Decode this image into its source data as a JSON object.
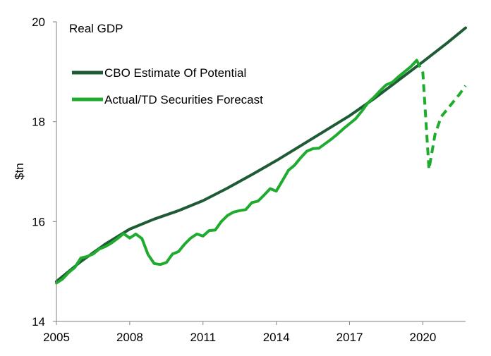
{
  "chart_data": {
    "type": "line",
    "title": "Real GDP",
    "xlabel": "",
    "ylabel": "$tn",
    "xlim": [
      2005,
      2021.75
    ],
    "ylim": [
      14,
      20
    ],
    "x_ticks": [
      2005,
      2008,
      2011,
      2014,
      2017,
      2020
    ],
    "y_ticks": [
      14,
      16,
      18,
      20
    ],
    "grid": false,
    "legend_position": "top-left",
    "series": [
      {
        "name": "CBO Estimate Of Potential",
        "color": "#1e5b35",
        "style": "solid",
        "points": [
          [
            2005,
            14.8
          ],
          [
            2006,
            15.2
          ],
          [
            2007,
            15.55
          ],
          [
            2008,
            15.85
          ],
          [
            2009,
            16.05
          ],
          [
            2010,
            16.22
          ],
          [
            2011,
            16.42
          ],
          [
            2012,
            16.67
          ],
          [
            2013,
            16.94
          ],
          [
            2014,
            17.22
          ],
          [
            2015,
            17.52
          ],
          [
            2016,
            17.82
          ],
          [
            2017,
            18.12
          ],
          [
            2018,
            18.46
          ],
          [
            2019,
            18.83
          ],
          [
            2020,
            19.2
          ],
          [
            2021,
            19.58
          ],
          [
            2021.75,
            19.88
          ]
        ]
      },
      {
        "name": "Actual/TD Securities Forecast",
        "color": "#1fac2e",
        "style": "solid",
        "points": [
          [
            2005,
            14.77
          ],
          [
            2005.25,
            14.85
          ],
          [
            2005.5,
            14.98
          ],
          [
            2005.75,
            15.08
          ],
          [
            2006,
            15.27
          ],
          [
            2006.25,
            15.3
          ],
          [
            2006.5,
            15.35
          ],
          [
            2006.75,
            15.45
          ],
          [
            2007,
            15.5
          ],
          [
            2007.25,
            15.57
          ],
          [
            2007.5,
            15.66
          ],
          [
            2007.75,
            15.76
          ],
          [
            2008,
            15.67
          ],
          [
            2008.25,
            15.75
          ],
          [
            2008.5,
            15.66
          ],
          [
            2008.75,
            15.34
          ],
          [
            2009,
            15.16
          ],
          [
            2009.25,
            15.14
          ],
          [
            2009.5,
            15.18
          ],
          [
            2009.75,
            15.35
          ],
          [
            2010,
            15.4
          ],
          [
            2010.25,
            15.55
          ],
          [
            2010.5,
            15.67
          ],
          [
            2010.75,
            15.75
          ],
          [
            2011,
            15.71
          ],
          [
            2011.25,
            15.82
          ],
          [
            2011.5,
            15.83
          ],
          [
            2011.75,
            16.0
          ],
          [
            2012,
            16.12
          ],
          [
            2012.25,
            16.19
          ],
          [
            2012.5,
            16.22
          ],
          [
            2012.75,
            16.24
          ],
          [
            2013,
            16.38
          ],
          [
            2013.25,
            16.41
          ],
          [
            2013.5,
            16.53
          ],
          [
            2013.75,
            16.66
          ],
          [
            2014,
            16.61
          ],
          [
            2014.25,
            16.82
          ],
          [
            2014.5,
            17.03
          ],
          [
            2014.75,
            17.13
          ],
          [
            2015,
            17.28
          ],
          [
            2015.25,
            17.41
          ],
          [
            2015.5,
            17.46
          ],
          [
            2015.75,
            17.47
          ],
          [
            2016,
            17.56
          ],
          [
            2016.25,
            17.65
          ],
          [
            2016.5,
            17.75
          ],
          [
            2016.75,
            17.86
          ],
          [
            2017,
            17.96
          ],
          [
            2017.25,
            18.06
          ],
          [
            2017.5,
            18.21
          ],
          [
            2017.75,
            18.38
          ],
          [
            2018,
            18.49
          ],
          [
            2018.25,
            18.62
          ],
          [
            2018.5,
            18.74
          ],
          [
            2018.75,
            18.79
          ],
          [
            2019,
            18.9
          ],
          [
            2019.25,
            19.0
          ],
          [
            2019.5,
            19.1
          ],
          [
            2019.75,
            19.23
          ]
        ]
      },
      {
        "name": "",
        "color": "#1fac2e",
        "style": "dashed",
        "points": [
          [
            2019.75,
            19.23
          ],
          [
            2020,
            18.98
          ],
          [
            2020.25,
            17.05
          ],
          [
            2020.5,
            17.75
          ],
          [
            2020.75,
            18.1
          ],
          [
            2021,
            18.25
          ],
          [
            2021.25,
            18.4
          ],
          [
            2021.5,
            18.55
          ],
          [
            2021.75,
            18.72
          ]
        ]
      }
    ]
  }
}
